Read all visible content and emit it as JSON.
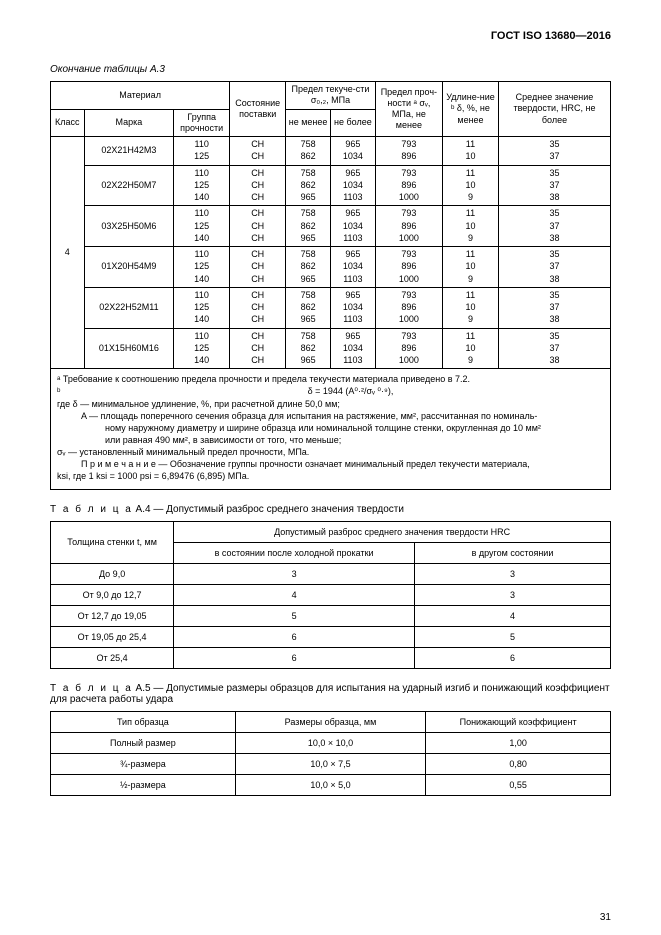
{
  "header": "ГОСТ ISO 13680—2016",
  "captionA3": "Окончание таблицы А.3",
  "tableA3": {
    "head": {
      "material": "Материал",
      "klass": "Класс",
      "marka": "Марка",
      "group": "Группа прочности",
      "state": "Состояние поставки",
      "yield": "Предел текуче-сти σ₀,₂, МПа",
      "notless": "не менее",
      "notmore": "не более",
      "tensile": "Предел проч-ности ᵃ σᵥ, МПа, не менее",
      "elong": "Удлине-ние ᵇ δ, %, не менее",
      "hardness": "Среднее значение твердости, HRC, не более"
    },
    "klass": "4",
    "rows": [
      {
        "marka": "02Х21Н42М3",
        "g": [
          "110",
          "125"
        ],
        "st": [
          "СН",
          "СН"
        ],
        "y1": [
          "758",
          "862"
        ],
        "y2": [
          "965",
          "1034"
        ],
        "t": [
          "793",
          "896"
        ],
        "e": [
          "11",
          "10"
        ],
        "h": [
          "35",
          "37"
        ]
      },
      {
        "marka": "02Х22Н50М7",
        "g": [
          "110",
          "125",
          "140"
        ],
        "st": [
          "СН",
          "СН",
          "СН"
        ],
        "y1": [
          "758",
          "862",
          "965"
        ],
        "y2": [
          "965",
          "1034",
          "1103"
        ],
        "t": [
          "793",
          "896",
          "1000"
        ],
        "e": [
          "11",
          "10",
          "9"
        ],
        "h": [
          "35",
          "37",
          "38"
        ]
      },
      {
        "marka": "03Х25Н50М6",
        "g": [
          "110",
          "125",
          "140"
        ],
        "st": [
          "СН",
          "СН",
          "СН"
        ],
        "y1": [
          "758",
          "862",
          "965"
        ],
        "y2": [
          "965",
          "1034",
          "1103"
        ],
        "t": [
          "793",
          "896",
          "1000"
        ],
        "e": [
          "11",
          "10",
          "9"
        ],
        "h": [
          "35",
          "37",
          "38"
        ]
      },
      {
        "marka": "01Х20Н54М9",
        "g": [
          "110",
          "125",
          "140"
        ],
        "st": [
          "СН",
          "СН",
          "СН"
        ],
        "y1": [
          "758",
          "862",
          "965"
        ],
        "y2": [
          "965",
          "1034",
          "1103"
        ],
        "t": [
          "793",
          "896",
          "1000"
        ],
        "e": [
          "11",
          "10",
          "9"
        ],
        "h": [
          "35",
          "37",
          "38"
        ]
      },
      {
        "marka": "02Х22Н52М11",
        "g": [
          "110",
          "125",
          "140"
        ],
        "st": [
          "СН",
          "СН",
          "СН"
        ],
        "y1": [
          "758",
          "862",
          "965"
        ],
        "y2": [
          "965",
          "1034",
          "1103"
        ],
        "t": [
          "793",
          "896",
          "1000"
        ],
        "e": [
          "11",
          "10",
          "9"
        ],
        "h": [
          "35",
          "37",
          "38"
        ]
      },
      {
        "marka": "01Х15Н60М16",
        "g": [
          "110",
          "125",
          "140"
        ],
        "st": [
          "СН",
          "СН",
          "СН"
        ],
        "y1": [
          "758",
          "862",
          "965"
        ],
        "y2": [
          "965",
          "1034",
          "1103"
        ],
        "t": [
          "793",
          "896",
          "1000"
        ],
        "e": [
          "11",
          "10",
          "9"
        ],
        "h": [
          "35",
          "37",
          "38"
        ]
      }
    ]
  },
  "notes": {
    "a": "ᵃ Требование к соотношению предела прочности и предела текучести материала приведено в 7.2.",
    "b_label": "ᵇ",
    "eq": "δ = 1944 (A⁰·²/σᵥ ⁰·⁹),",
    "l1": "где δ — минимальное удлинение, %, при расчетной длине 50,0 мм;",
    "l2_a": "A — площадь поперечного сечения образца для испытания на растяжение, мм², рассчитанная по номиналь-",
    "l2_b": "ному наружному диаметру и ширине образца или номинальной толщине стенки, округленная до 10 мм²",
    "l2_c": "или равная 490 мм², в зависимости от того, что меньше;",
    "l3": "σᵥ — установленный минимальный предел прочности, МПа.",
    "note_a": "П р и м е ч а н и е — Обозначение группы прочности означает минимальный предел текучести материала,",
    "note_b": "ksi, где 1 ksi = 1000 psi = 6,89476 (6,895) МПа."
  },
  "tableA4": {
    "title_pre": "Т а б л и ц а",
    "title": " А.4 — Допустимый разброс среднего значения твердости",
    "head": {
      "thickness": "Толщина стенки t, мм",
      "spread": "Допустимый разброс среднего значения твердости HRC",
      "cold": "в состоянии после холодной прокатки",
      "other": "в другом состоянии"
    },
    "rows": [
      {
        "t": "До 9,0",
        "a": "3",
        "b": "3"
      },
      {
        "t": "От 9,0 до 12,7",
        "a": "4",
        "b": "3"
      },
      {
        "t": "От 12,7 до 19,05",
        "a": "5",
        "b": "4"
      },
      {
        "t": "От 19,05 до 25,4",
        "a": "6",
        "b": "5"
      },
      {
        "t": "От 25,4",
        "a": "6",
        "b": "6"
      }
    ]
  },
  "tableA5": {
    "title_pre": "Т а б л и ц а",
    "title": " А.5 — Допустимые размеры образцов для испытания на ударный изгиб и понижающий коэффициент для расчета работы удара",
    "head": {
      "type": "Тип образца",
      "dims": "Размеры образца, мм",
      "coef": "Понижающий коэффициент"
    },
    "rows": [
      {
        "t": "Полный размер",
        "d": "10,0 × 10,0",
        "c": "1,00"
      },
      {
        "t": "¾-размера",
        "d": "10,0 × 7,5",
        "c": "0,80"
      },
      {
        "t": "½-размера",
        "d": "10,0 × 5,0",
        "c": "0,55"
      }
    ]
  },
  "pageNumber": "31"
}
